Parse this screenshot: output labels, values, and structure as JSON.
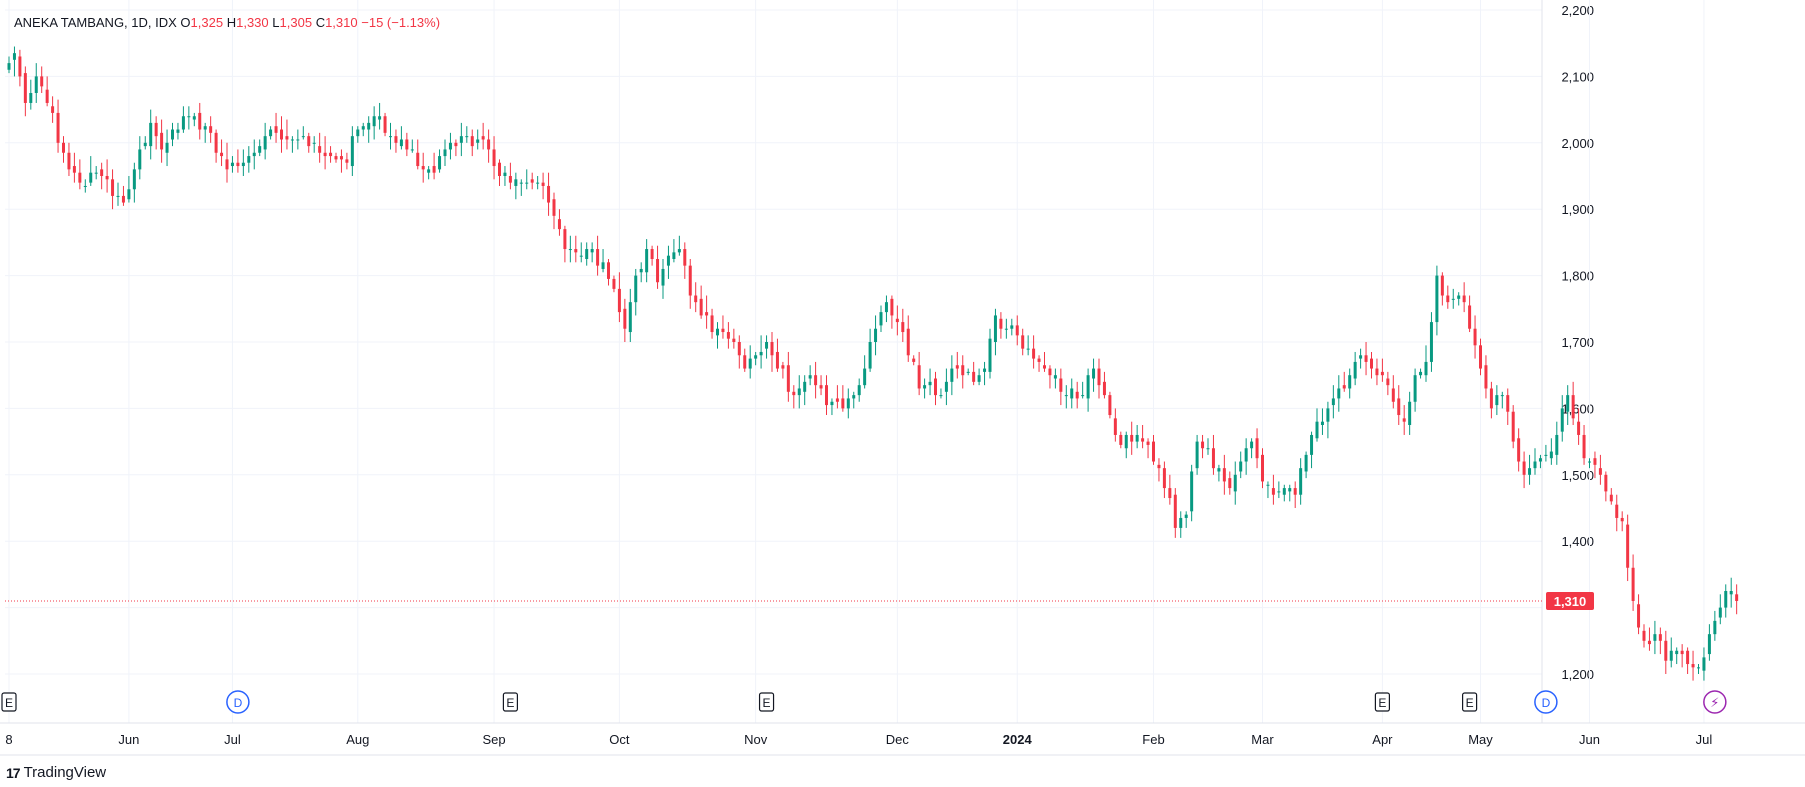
{
  "legend": {
    "symbol": "ANEKA TAMBANG, 1D, IDX",
    "o_label": "O",
    "o_value": "1,325",
    "h_label": "H",
    "h_value": "1,330",
    "l_label": "L",
    "l_value": "1,305",
    "c_label": "C",
    "c_value": "1,310",
    "change": "−15 (−1.13%)"
  },
  "watermark": {
    "text": "TradingView",
    "logo": "17"
  },
  "colors": {
    "up": "#089981",
    "down": "#f23645",
    "grid": "#f0f3fa",
    "text": "#131722",
    "event_blue": "#2962ff",
    "event_purple": "#9c27b0"
  },
  "events": [
    {
      "label": "E",
      "icon": "earnings-icon",
      "index": 0
    },
    {
      "label": "D",
      "icon": "dividend-icon",
      "index": 42
    },
    {
      "label": "E",
      "icon": "earnings-icon",
      "index": 92
    },
    {
      "label": "E",
      "icon": "earnings-icon",
      "index": 139
    },
    {
      "label": "E",
      "icon": "earnings-icon",
      "index": 252
    },
    {
      "label": "E",
      "icon": "earnings-icon",
      "index": 268
    },
    {
      "label": "D",
      "icon": "dividend-icon",
      "index": 282
    },
    {
      "label": "⚡",
      "icon": "lightning-icon",
      "index": 313
    }
  ],
  "chart_data": {
    "type": "candlestick",
    "ylim": [
      1180,
      2200
    ],
    "y_ticks": [
      1200,
      1300,
      1400,
      1500,
      1600,
      1700,
      1800,
      1900,
      2000,
      2100,
      2200
    ],
    "y_tick_labels": [
      "1,200",
      "",
      "1,400",
      "1,500",
      "1,600",
      "1,700",
      "1,800",
      "1,900",
      "2,000",
      "2,100",
      "2,200"
    ],
    "x_ticks": [
      {
        "label": "8",
        "index": 0,
        "bold": false
      },
      {
        "label": "Jun",
        "index": 22,
        "bold": false
      },
      {
        "label": "Jul",
        "index": 41,
        "bold": false
      },
      {
        "label": "Aug",
        "index": 64,
        "bold": false
      },
      {
        "label": "Sep",
        "index": 89,
        "bold": false
      },
      {
        "label": "Oct",
        "index": 112,
        "bold": false
      },
      {
        "label": "Nov",
        "index": 137,
        "bold": false
      },
      {
        "label": "Dec",
        "index": 163,
        "bold": false
      },
      {
        "label": "2024",
        "index": 185,
        "bold": true
      },
      {
        "label": "Feb",
        "index": 210,
        "bold": false
      },
      {
        "label": "Mar",
        "index": 230,
        "bold": false
      },
      {
        "label": "Apr",
        "index": 252,
        "bold": false
      },
      {
        "label": "May",
        "index": 270,
        "bold": false
      },
      {
        "label": "Jun",
        "index": 290,
        "bold": false
      },
      {
        "label": "Jul",
        "index": 311,
        "bold": false
      }
    ],
    "last_price": 1310,
    "last_price_label": "1,310",
    "anchors": [
      [
        0,
        2120
      ],
      [
        1,
        2135
      ],
      [
        3,
        2060
      ],
      [
        5,
        2100
      ],
      [
        7,
        2060
      ],
      [
        9,
        2000
      ],
      [
        11,
        1960
      ],
      [
        13,
        1940
      ],
      [
        17,
        1950
      ],
      [
        19,
        1920
      ],
      [
        21,
        1910
      ],
      [
        23,
        1960
      ],
      [
        26,
        2030
      ],
      [
        28,
        1990
      ],
      [
        30,
        2020
      ],
      [
        33,
        2040
      ],
      [
        35,
        2020
      ],
      [
        37,
        2015
      ],
      [
        40,
        1960
      ],
      [
        42,
        1965
      ],
      [
        44,
        1980
      ],
      [
        47,
        2010
      ],
      [
        50,
        2005
      ],
      [
        53,
        2005
      ],
      [
        56,
        2000
      ],
      [
        59,
        1980
      ],
      [
        62,
        1970
      ],
      [
        64,
        2020
      ],
      [
        66,
        2030
      ],
      [
        68,
        2040
      ],
      [
        70,
        2010
      ],
      [
        73,
        1990
      ],
      [
        76,
        1960
      ],
      [
        78,
        1955
      ],
      [
        81,
        2000
      ],
      [
        83,
        2010
      ],
      [
        86,
        2005
      ],
      [
        88,
        1990
      ],
      [
        90,
        1950
      ],
      [
        93,
        1945
      ],
      [
        97,
        1940
      ],
      [
        99,
        1910
      ],
      [
        101,
        1870
      ],
      [
        103,
        1840
      ],
      [
        106,
        1840
      ],
      [
        109,
        1820
      ],
      [
        111,
        1780
      ],
      [
        113,
        1720
      ],
      [
        115,
        1800
      ],
      [
        117,
        1840
      ],
      [
        119,
        1790
      ],
      [
        121,
        1830
      ],
      [
        123,
        1840
      ],
      [
        125,
        1770
      ],
      [
        127,
        1740
      ],
      [
        130,
        1720
      ],
      [
        133,
        1700
      ],
      [
        135,
        1660
      ],
      [
        137,
        1680
      ],
      [
        139,
        1700
      ],
      [
        141,
        1660
      ],
      [
        144,
        1620
      ],
      [
        146,
        1640
      ],
      [
        149,
        1630
      ],
      [
        151,
        1610
      ],
      [
        153,
        1600
      ],
      [
        155,
        1620
      ],
      [
        157,
        1660
      ],
      [
        159,
        1720
      ],
      [
        161,
        1760
      ],
      [
        163,
        1730
      ],
      [
        165,
        1680
      ],
      [
        167,
        1630
      ],
      [
        169,
        1640
      ],
      [
        171,
        1620
      ],
      [
        173,
        1660
      ],
      [
        175,
        1650
      ],
      [
        177,
        1640
      ],
      [
        179,
        1660
      ],
      [
        181,
        1740
      ],
      [
        183,
        1720
      ],
      [
        185,
        1710
      ],
      [
        187,
        1690
      ],
      [
        189,
        1670
      ],
      [
        191,
        1650
      ],
      [
        194,
        1620
      ],
      [
        197,
        1620
      ],
      [
        199,
        1660
      ],
      [
        201,
        1620
      ],
      [
        203,
        1560
      ],
      [
        205,
        1560
      ],
      [
        208,
        1550
      ],
      [
        210,
        1520
      ],
      [
        212,
        1480
      ],
      [
        214,
        1420
      ],
      [
        216,
        1440
      ],
      [
        218,
        1550
      ],
      [
        220,
        1540
      ],
      [
        222,
        1510
      ],
      [
        224,
        1480
      ],
      [
        226,
        1520
      ],
      [
        228,
        1550
      ],
      [
        230,
        1490
      ],
      [
        232,
        1470
      ],
      [
        234,
        1480
      ],
      [
        236,
        1470
      ],
      [
        238,
        1530
      ],
      [
        240,
        1580
      ],
      [
        242,
        1600
      ],
      [
        244,
        1630
      ],
      [
        246,
        1650
      ],
      [
        248,
        1680
      ],
      [
        250,
        1660
      ],
      [
        252,
        1650
      ],
      [
        254,
        1610
      ],
      [
        256,
        1580
      ],
      [
        258,
        1650
      ],
      [
        260,
        1670
      ],
      [
        262,
        1800
      ],
      [
        264,
        1760
      ],
      [
        266,
        1770
      ],
      [
        268,
        1720
      ],
      [
        270,
        1660
      ],
      [
        272,
        1600
      ],
      [
        274,
        1620
      ],
      [
        276,
        1550
      ],
      [
        278,
        1500
      ],
      [
        280,
        1520
      ],
      [
        282,
        1530
      ],
      [
        284,
        1560
      ],
      [
        286,
        1620
      ],
      [
        288,
        1560
      ],
      [
        290,
        1520
      ],
      [
        292,
        1500
      ],
      [
        294,
        1460
      ],
      [
        296,
        1430
      ],
      [
        298,
        1310
      ],
      [
        300,
        1250
      ],
      [
        302,
        1260
      ],
      [
        304,
        1220
      ],
      [
        306,
        1235
      ],
      [
        308,
        1215
      ],
      [
        310,
        1210
      ],
      [
        312,
        1260
      ],
      [
        314,
        1300
      ],
      [
        316,
        1325
      ],
      [
        317,
        1310
      ]
    ]
  }
}
